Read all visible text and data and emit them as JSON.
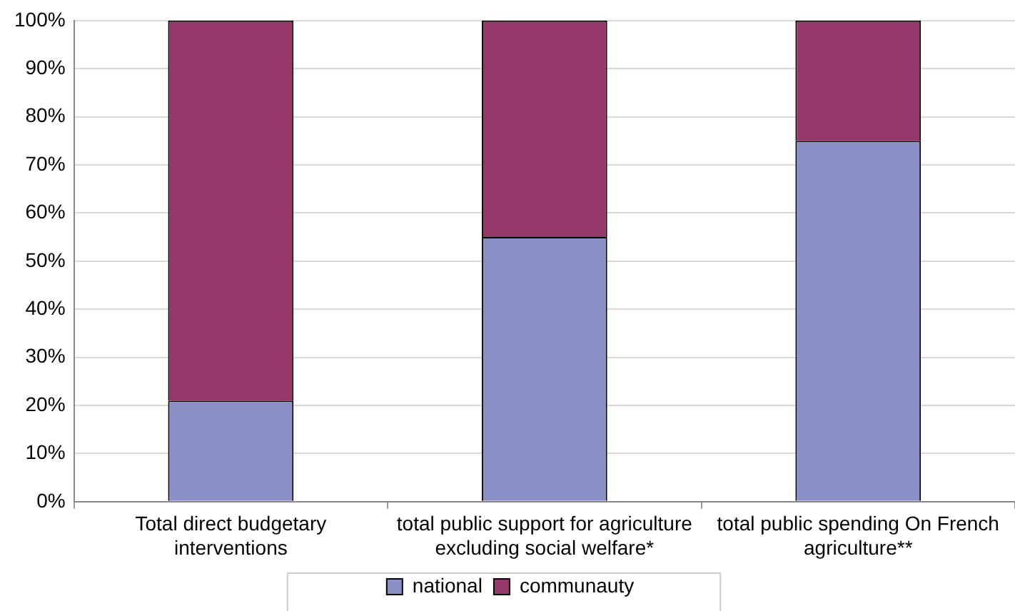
{
  "chart_data": {
    "type": "bar",
    "stacked": true,
    "categories": [
      "Total direct budgetary interventions",
      "total public support for agriculture excluding social welfare*",
      "total public spending On French agriculture**"
    ],
    "series": [
      {
        "name": "national",
        "color": "#8a8fc6",
        "values": [
          21,
          55,
          75
        ]
      },
      {
        "name": "communauty",
        "color": "#963769",
        "values": [
          79,
          45,
          25
        ]
      }
    ],
    "ylim": [
      0,
      100
    ],
    "yticks": [
      {
        "value": 0,
        "label": "0%"
      },
      {
        "value": 10,
        "label": "10%"
      },
      {
        "value": 20,
        "label": "20%"
      },
      {
        "value": 30,
        "label": "30%"
      },
      {
        "value": 40,
        "label": "40%"
      },
      {
        "value": 50,
        "label": "50%"
      },
      {
        "value": 60,
        "label": "60%"
      },
      {
        "value": 70,
        "label": "70%"
      },
      {
        "value": 80,
        "label": "80%"
      },
      {
        "value": 90,
        "label": "90%"
      },
      {
        "value": 100,
        "label": "100%"
      }
    ],
    "grid": "y",
    "legend": "bottom"
  }
}
